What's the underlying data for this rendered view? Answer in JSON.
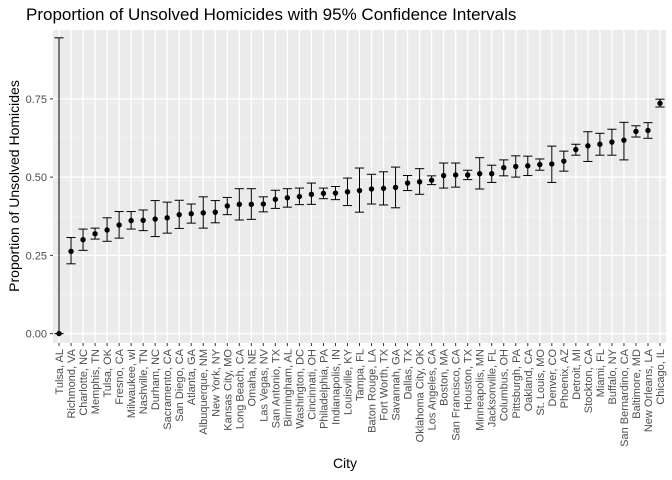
{
  "chart_data": {
    "type": "scatter",
    "title": "Proportion of Unsolved Homicides with 95% Confidence Intervals",
    "xlabel": "City",
    "ylabel": "Proportion of Unsolved Homicides",
    "ylim": [
      -0.03,
      0.97
    ],
    "yticks": [
      0.0,
      0.25,
      0.5,
      0.75
    ],
    "ytick_labels": [
      "0.00",
      "0.25",
      "0.50",
      "0.75"
    ],
    "grid": true,
    "error_bars": "95% confidence interval",
    "categories": [
      "Tulsa, AL",
      "Richmond, VA",
      "Charlotte, NC",
      "Memphis, TN",
      "Tulsa, OK",
      "Fresno, CA",
      "Milwaukee, wI",
      "Nashville, TN",
      "Durham, NC",
      "Sacramento, CA",
      "San Diego, CA",
      "Atlanta, GA",
      "Albuquerque, NM",
      "New York, NY",
      "Kansas City, MO",
      "Long Beach, CA",
      "Omaha, NE",
      "Las Vegas, NV",
      "San Antonio, TX",
      "Birmingham, AL",
      "Washington, DC",
      "Cincinnati, OH",
      "Philadelphia, PA",
      "Indianapolis, IN",
      "Louisville, KY",
      "Tampa, FL",
      "Baton Rouge, LA",
      "Fort Worth, TX",
      "Savannah, GA",
      "Dallas, TX",
      "Oklahoma City, OK",
      "Los Angeles, CA",
      "Boston, MA",
      "San Francisco, CA",
      "Houston, TX",
      "Minneapolis, MN",
      "Jacksonville, FL",
      "Columbus, OH",
      "Pittsburgh, PA",
      "Oakland, CA",
      "St. Louis, MO",
      "Denver, CO",
      "Phoenix, AZ",
      "Detroit, MI",
      "Stockton, CA",
      "Miami, FL",
      "Buffalo, NY",
      "San Bernardino, CA",
      "Baltimore, MD",
      "New Orleans, LA",
      "Chicago, IL"
    ],
    "series": [
      {
        "estimate": [
          0.0,
          0.263,
          0.3,
          0.319,
          0.331,
          0.347,
          0.361,
          0.362,
          0.366,
          0.37,
          0.38,
          0.383,
          0.386,
          0.388,
          0.408,
          0.413,
          0.413,
          0.414,
          0.429,
          0.434,
          0.438,
          0.445,
          0.448,
          0.449,
          0.453,
          0.457,
          0.462,
          0.464,
          0.467,
          0.481,
          0.485,
          0.49,
          0.505,
          0.507,
          0.507,
          0.511,
          0.511,
          0.53,
          0.534,
          0.536,
          0.54,
          0.542,
          0.551,
          0.588,
          0.6,
          0.605,
          0.612,
          0.618,
          0.646,
          0.649,
          0.736
        ],
        "lower": [
          0.0,
          0.223,
          0.266,
          0.302,
          0.295,
          0.305,
          0.334,
          0.329,
          0.31,
          0.321,
          0.336,
          0.353,
          0.337,
          0.354,
          0.38,
          0.363,
          0.365,
          0.389,
          0.4,
          0.404,
          0.412,
          0.413,
          0.431,
          0.428,
          0.409,
          0.388,
          0.414,
          0.411,
          0.402,
          0.457,
          0.445,
          0.476,
          0.465,
          0.468,
          0.492,
          0.462,
          0.483,
          0.504,
          0.5,
          0.505,
          0.522,
          0.483,
          0.519,
          0.57,
          0.55,
          0.57,
          0.57,
          0.555,
          0.628,
          0.624,
          0.724
        ],
        "upper": [
          0.945,
          0.307,
          0.334,
          0.337,
          0.37,
          0.39,
          0.39,
          0.395,
          0.425,
          0.42,
          0.426,
          0.414,
          0.437,
          0.425,
          0.435,
          0.463,
          0.463,
          0.437,
          0.458,
          0.463,
          0.465,
          0.481,
          0.465,
          0.47,
          0.497,
          0.529,
          0.509,
          0.517,
          0.532,
          0.505,
          0.527,
          0.504,
          0.545,
          0.545,
          0.522,
          0.562,
          0.538,
          0.555,
          0.568,
          0.567,
          0.558,
          0.599,
          0.583,
          0.605,
          0.645,
          0.64,
          0.653,
          0.675,
          0.664,
          0.674,
          0.749
        ]
      }
    ],
    "colors": {
      "panel_background": "#ebebeb",
      "grid_major": "#ffffff",
      "grid_minor": "#f4f4f4",
      "point": "#000000",
      "axis_text": "#4d4d4d"
    }
  }
}
